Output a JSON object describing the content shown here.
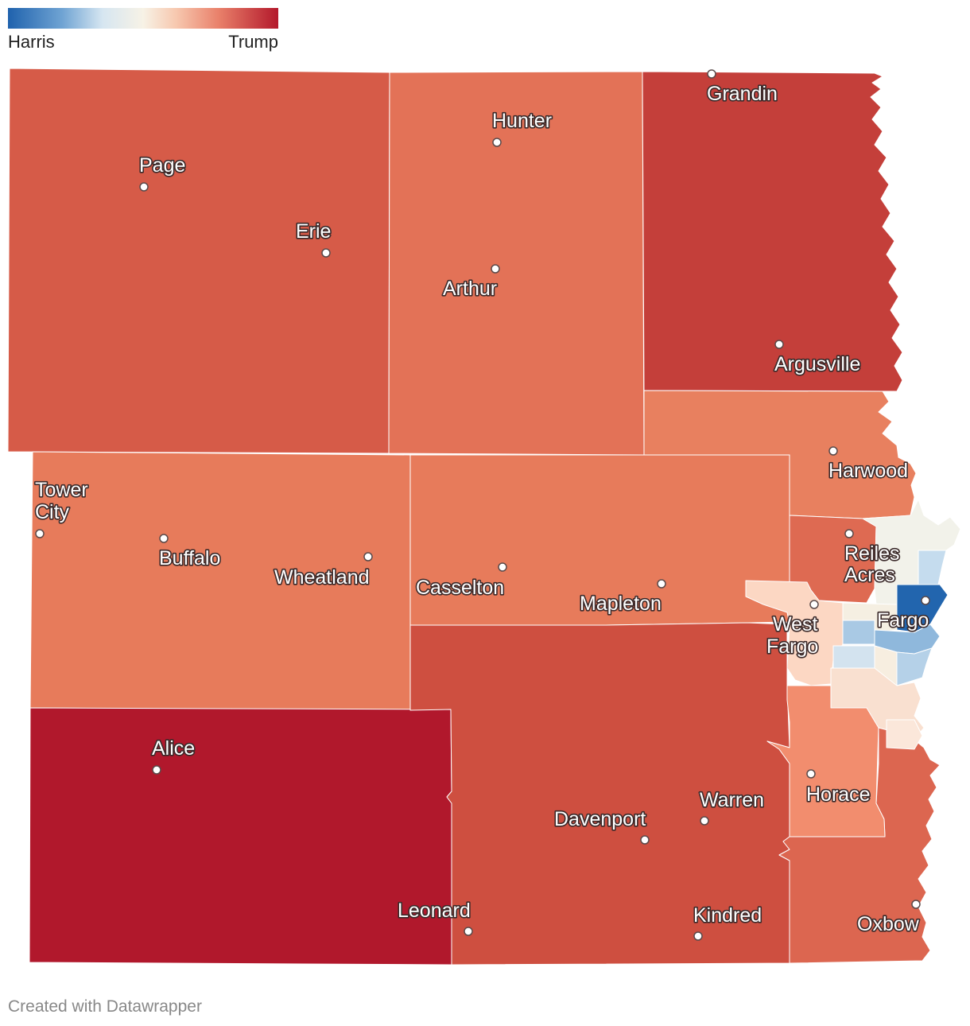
{
  "legend": {
    "left_label": "Harris",
    "right_label": "Trump",
    "colors": [
      "#1f62ad",
      "#6fa3d3",
      "#d6e6f1",
      "#f7f2e6",
      "#f7c9b0",
      "#e9806a",
      "#b3182b"
    ]
  },
  "places": {
    "page": "Page",
    "erie": "Erie",
    "hunter": "Hunter",
    "arthur": "Arthur",
    "grandin": "Grandin",
    "argusville": "Argusville",
    "harwood": "Harwood",
    "tower_city_1": "Tower",
    "tower_city_2": "City",
    "buffalo": "Buffalo",
    "wheatland": "Wheatland",
    "casselton": "Casselton",
    "mapleton": "Mapleton",
    "reiles_acres_1": "Reiles",
    "reiles_acres_2": "Acres",
    "west_fargo_1": "West",
    "west_fargo_2": "Fargo",
    "fargo": "Fargo",
    "alice": "Alice",
    "warren": "Warren",
    "davenport": "Davenport",
    "horace": "Horace",
    "leonard": "Leonard",
    "kindred": "Kindred",
    "oxbow": "Oxbow"
  },
  "credit": "Created with Datawrapper"
}
